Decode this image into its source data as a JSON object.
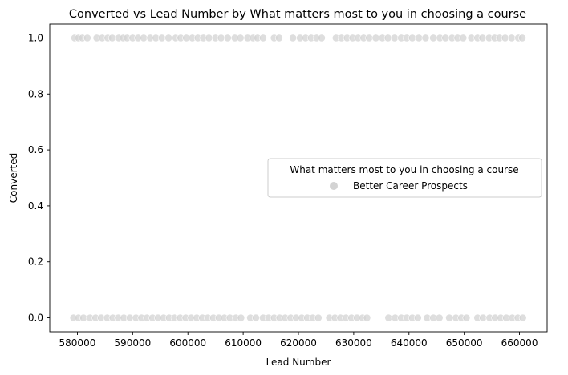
{
  "chart_data": {
    "type": "scatter",
    "title": "Converted vs Lead Number by What matters most to you in choosing a course",
    "xlabel": "Lead Number",
    "ylabel": "Converted",
    "xlim": [
      575000,
      665000
    ],
    "ylim": [
      -0.05,
      1.05
    ],
    "xticks": [
      580000,
      590000,
      600000,
      610000,
      620000,
      630000,
      640000,
      650000,
      660000
    ],
    "yticks": [
      0.0,
      0.2,
      0.4,
      0.6,
      0.8,
      1.0
    ],
    "xtick_labels": [
      "580000",
      "590000",
      "600000",
      "610000",
      "620000",
      "630000",
      "640000",
      "650000",
      "660000"
    ],
    "ytick_labels": [
      "0.0",
      "0.2",
      "0.4",
      "0.6",
      "0.8",
      "1.0"
    ],
    "grid": false,
    "legend": {
      "title": "What matters most to you in choosing a course",
      "placement": "center-right",
      "entries": [
        {
          "label": "Better Career Prospects",
          "color": "#d3d3d3"
        }
      ]
    },
    "series": [
      {
        "name": "Better Career Prospects",
        "color": "#d3d3d3",
        "points": [
          {
            "x": 579500,
            "y": 1
          },
          {
            "x": 580200,
            "y": 1
          },
          {
            "x": 580900,
            "y": 1
          },
          {
            "x": 581800,
            "y": 1
          },
          {
            "x": 583500,
            "y": 1
          },
          {
            "x": 584500,
            "y": 1
          },
          {
            "x": 585500,
            "y": 1
          },
          {
            "x": 586300,
            "y": 1
          },
          {
            "x": 587500,
            "y": 1
          },
          {
            "x": 588300,
            "y": 1
          },
          {
            "x": 589000,
            "y": 1
          },
          {
            "x": 590000,
            "y": 1
          },
          {
            "x": 591000,
            "y": 1
          },
          {
            "x": 592000,
            "y": 1
          },
          {
            "x": 593200,
            "y": 1
          },
          {
            "x": 594200,
            "y": 1
          },
          {
            "x": 595300,
            "y": 1
          },
          {
            "x": 596500,
            "y": 1
          },
          {
            "x": 597800,
            "y": 1
          },
          {
            "x": 598700,
            "y": 1
          },
          {
            "x": 599700,
            "y": 1
          },
          {
            "x": 600800,
            "y": 1
          },
          {
            "x": 601800,
            "y": 1
          },
          {
            "x": 602800,
            "y": 1
          },
          {
            "x": 603800,
            "y": 1
          },
          {
            "x": 605000,
            "y": 1
          },
          {
            "x": 606000,
            "y": 1
          },
          {
            "x": 607200,
            "y": 1
          },
          {
            "x": 608500,
            "y": 1
          },
          {
            "x": 609500,
            "y": 1
          },
          {
            "x": 610800,
            "y": 1
          },
          {
            "x": 611800,
            "y": 1
          },
          {
            "x": 612600,
            "y": 1
          },
          {
            "x": 613600,
            "y": 1
          },
          {
            "x": 615600,
            "y": 1
          },
          {
            "x": 616500,
            "y": 1
          },
          {
            "x": 619000,
            "y": 1
          },
          {
            "x": 620300,
            "y": 1
          },
          {
            "x": 621300,
            "y": 1
          },
          {
            "x": 622300,
            "y": 1
          },
          {
            "x": 623300,
            "y": 1
          },
          {
            "x": 624200,
            "y": 1
          },
          {
            "x": 626800,
            "y": 1
          },
          {
            "x": 627800,
            "y": 1
          },
          {
            "x": 628800,
            "y": 1
          },
          {
            "x": 629800,
            "y": 1
          },
          {
            "x": 630800,
            "y": 1
          },
          {
            "x": 631800,
            "y": 1
          },
          {
            "x": 632800,
            "y": 1
          },
          {
            "x": 634000,
            "y": 1
          },
          {
            "x": 635200,
            "y": 1
          },
          {
            "x": 636200,
            "y": 1
          },
          {
            "x": 637400,
            "y": 1
          },
          {
            "x": 638600,
            "y": 1
          },
          {
            "x": 639600,
            "y": 1
          },
          {
            "x": 640600,
            "y": 1
          },
          {
            "x": 641800,
            "y": 1
          },
          {
            "x": 643000,
            "y": 1
          },
          {
            "x": 644400,
            "y": 1
          },
          {
            "x": 645600,
            "y": 1
          },
          {
            "x": 646600,
            "y": 1
          },
          {
            "x": 647800,
            "y": 1
          },
          {
            "x": 648800,
            "y": 1
          },
          {
            "x": 649800,
            "y": 1
          },
          {
            "x": 651300,
            "y": 1
          },
          {
            "x": 652400,
            "y": 1
          },
          {
            "x": 653300,
            "y": 1
          },
          {
            "x": 654500,
            "y": 1
          },
          {
            "x": 655500,
            "y": 1
          },
          {
            "x": 656400,
            "y": 1
          },
          {
            "x": 657400,
            "y": 1
          },
          {
            "x": 658600,
            "y": 1
          },
          {
            "x": 659800,
            "y": 1
          },
          {
            "x": 660500,
            "y": 1
          },
          {
            "x": 579300,
            "y": 0
          },
          {
            "x": 580200,
            "y": 0
          },
          {
            "x": 581100,
            "y": 0
          },
          {
            "x": 582300,
            "y": 0
          },
          {
            "x": 583300,
            "y": 0
          },
          {
            "x": 584300,
            "y": 0
          },
          {
            "x": 585400,
            "y": 0
          },
          {
            "x": 586400,
            "y": 0
          },
          {
            "x": 587400,
            "y": 0
          },
          {
            "x": 588400,
            "y": 0
          },
          {
            "x": 589500,
            "y": 0
          },
          {
            "x": 590600,
            "y": 0
          },
          {
            "x": 591600,
            "y": 0
          },
          {
            "x": 592600,
            "y": 0
          },
          {
            "x": 593600,
            "y": 0
          },
          {
            "x": 594600,
            "y": 0
          },
          {
            "x": 595600,
            "y": 0
          },
          {
            "x": 596600,
            "y": 0
          },
          {
            "x": 597600,
            "y": 0
          },
          {
            "x": 598600,
            "y": 0
          },
          {
            "x": 599600,
            "y": 0
          },
          {
            "x": 600600,
            "y": 0
          },
          {
            "x": 601600,
            "y": 0
          },
          {
            "x": 602600,
            "y": 0
          },
          {
            "x": 603600,
            "y": 0
          },
          {
            "x": 604600,
            "y": 0
          },
          {
            "x": 605600,
            "y": 0
          },
          {
            "x": 606600,
            "y": 0
          },
          {
            "x": 607600,
            "y": 0
          },
          {
            "x": 608700,
            "y": 0
          },
          {
            "x": 609600,
            "y": 0
          },
          {
            "x": 611300,
            "y": 0
          },
          {
            "x": 612300,
            "y": 0
          },
          {
            "x": 613600,
            "y": 0
          },
          {
            "x": 614600,
            "y": 0
          },
          {
            "x": 615600,
            "y": 0
          },
          {
            "x": 616600,
            "y": 0
          },
          {
            "x": 617600,
            "y": 0
          },
          {
            "x": 618600,
            "y": 0
          },
          {
            "x": 619600,
            "y": 0
          },
          {
            "x": 620600,
            "y": 0
          },
          {
            "x": 621600,
            "y": 0
          },
          {
            "x": 622600,
            "y": 0
          },
          {
            "x": 623600,
            "y": 0
          },
          {
            "x": 625600,
            "y": 0
          },
          {
            "x": 626600,
            "y": 0
          },
          {
            "x": 627600,
            "y": 0
          },
          {
            "x": 628600,
            "y": 0
          },
          {
            "x": 629600,
            "y": 0
          },
          {
            "x": 630600,
            "y": 0
          },
          {
            "x": 631600,
            "y": 0
          },
          {
            "x": 632400,
            "y": 0
          },
          {
            "x": 636300,
            "y": 0
          },
          {
            "x": 637500,
            "y": 0
          },
          {
            "x": 638600,
            "y": 0
          },
          {
            "x": 639600,
            "y": 0
          },
          {
            "x": 640600,
            "y": 0
          },
          {
            "x": 641600,
            "y": 0
          },
          {
            "x": 643300,
            "y": 0
          },
          {
            "x": 644400,
            "y": 0
          },
          {
            "x": 645500,
            "y": 0
          },
          {
            "x": 647300,
            "y": 0
          },
          {
            "x": 648500,
            "y": 0
          },
          {
            "x": 649500,
            "y": 0
          },
          {
            "x": 650400,
            "y": 0
          },
          {
            "x": 652400,
            "y": 0
          },
          {
            "x": 653400,
            "y": 0
          },
          {
            "x": 654600,
            "y": 0
          },
          {
            "x": 655600,
            "y": 0
          },
          {
            "x": 656600,
            "y": 0
          },
          {
            "x": 657600,
            "y": 0
          },
          {
            "x": 658700,
            "y": 0
          },
          {
            "x": 659700,
            "y": 0
          },
          {
            "x": 660600,
            "y": 0
          }
        ]
      }
    ]
  }
}
